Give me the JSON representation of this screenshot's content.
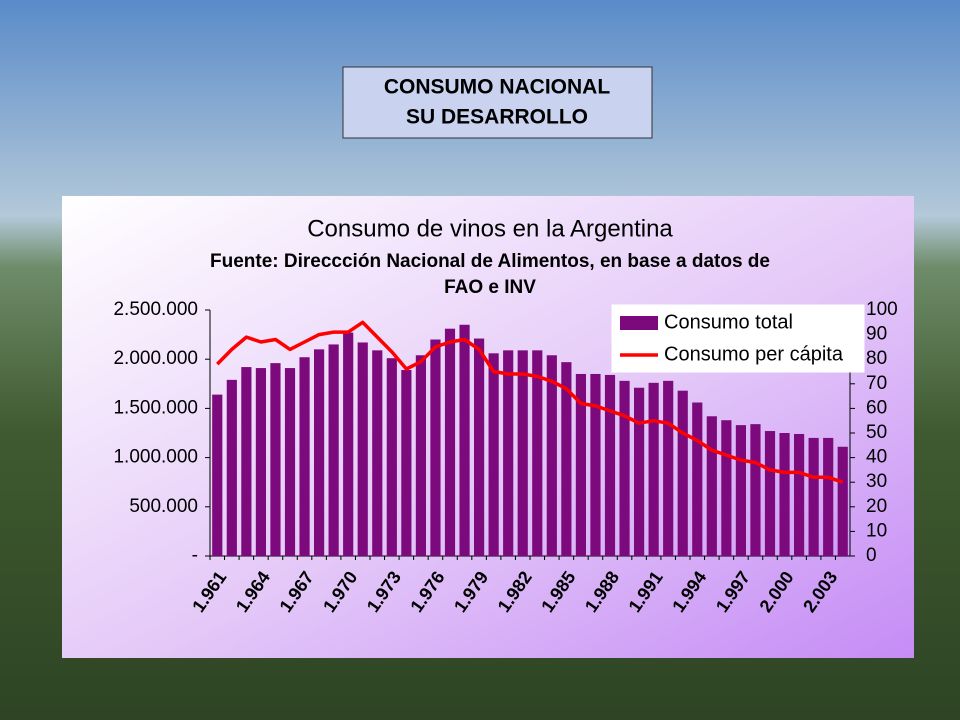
{
  "header": {
    "title": [
      "CONSUMO NACIONAL",
      "SU DESARROLLO"
    ]
  },
  "chart_data": {
    "type": "bar",
    "title": "Consumo de vinos en la Argentina",
    "subtitle": [
      "Fuente: Direccción Nacional de Alimentos, en base a datos de",
      "FAO e INV"
    ],
    "categories": [
      "1.961",
      null,
      null,
      "1.964",
      null,
      null,
      "1.967",
      null,
      null,
      "1.970",
      null,
      null,
      "1.973",
      null,
      null,
      "1.976",
      null,
      null,
      "1.979",
      null,
      null,
      "1.982",
      null,
      null,
      "1.985",
      null,
      null,
      "1.988",
      null,
      null,
      "1.991",
      null,
      null,
      "1.994",
      null,
      null,
      "1.997",
      null,
      null,
      "2.000",
      null,
      null,
      "2.003",
      null
    ],
    "series": [
      {
        "name": "Consumo total",
        "type": "bar",
        "color": "#7d0a7d",
        "values": [
          1640000,
          1790000,
          1920000,
          1910000,
          1960000,
          1910000,
          2020000,
          2100000,
          2150000,
          2270000,
          2170000,
          2090000,
          2010000,
          1890000,
          2040000,
          2200000,
          2310000,
          2350000,
          2210000,
          2060000,
          2090000,
          2090000,
          2090000,
          2040000,
          1970000,
          1850000,
          1850000,
          1840000,
          1780000,
          1710000,
          1760000,
          1780000,
          1680000,
          1560000,
          1420000,
          1380000,
          1330000,
          1340000,
          1270000,
          1250000,
          1240000,
          1200000,
          1200000,
          1110000
        ]
      },
      {
        "name": "Consumo per cápita",
        "type": "line",
        "axis": "y2",
        "color": "#ff0000",
        "values": [
          78,
          84,
          89,
          87,
          88,
          84,
          87,
          90,
          91,
          91,
          95,
          89,
          83,
          76,
          79,
          85,
          87,
          88,
          84,
          75,
          74,
          74,
          73,
          71,
          68,
          62,
          61,
          59,
          57,
          54,
          55,
          54,
          50,
          47,
          43,
          41,
          39,
          38,
          35,
          34,
          34,
          32,
          32,
          30
        ]
      }
    ],
    "ylim": [
      0,
      2500000
    ],
    "yticks": [
      {
        "value": 0,
        "label": "-"
      },
      {
        "value": 500000,
        "label": "500.000"
      },
      {
        "value": 1000000,
        "label": "1.000.000"
      },
      {
        "value": 1500000,
        "label": "1.500.000"
      },
      {
        "value": 2000000,
        "label": "2.000.000"
      },
      {
        "value": 2500000,
        "label": "2.500.000"
      }
    ],
    "y2lim": [
      0,
      100
    ],
    "y2ticks": [
      0,
      10,
      20,
      30,
      40,
      50,
      60,
      70,
      80,
      90,
      100
    ],
    "legend": "upper right",
    "grid": false
  }
}
